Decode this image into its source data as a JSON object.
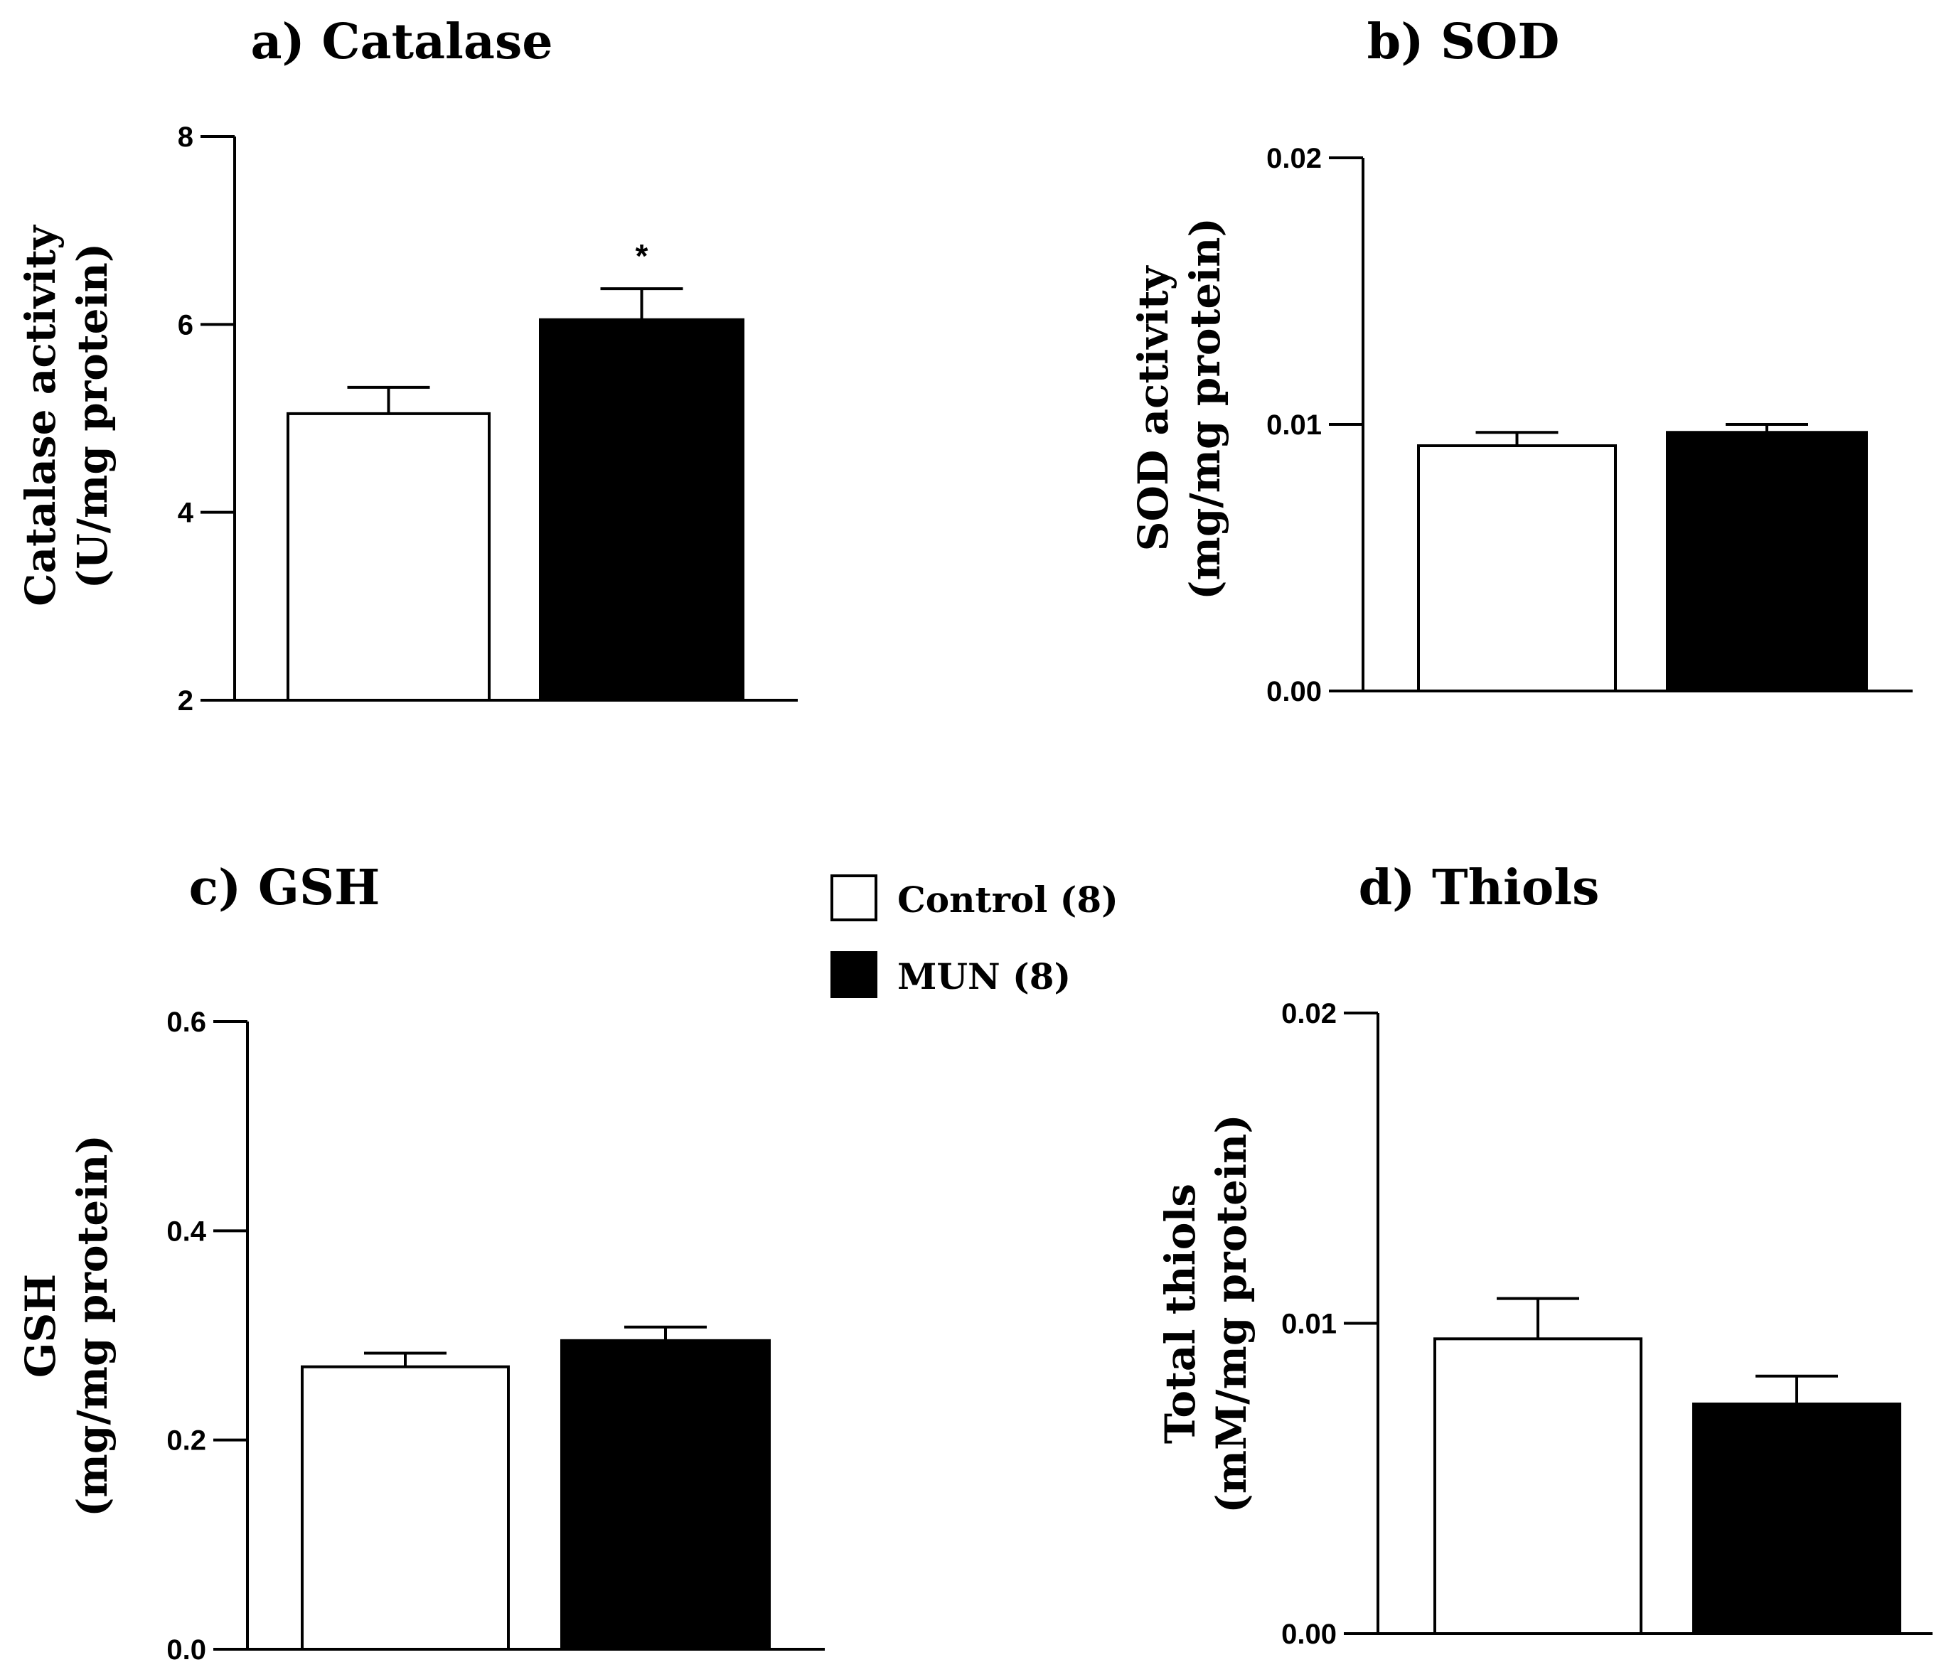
{
  "chart_data": [
    {
      "type": "bar",
      "title": "a) Catalase",
      "ylabel_lines": [
        "Catalase activity",
        "(U/mg protein)"
      ],
      "categories": [
        "Control (8)",
        "MUN (8)"
      ],
      "values": [
        5.05,
        6.05
      ],
      "errors": [
        0.28,
        0.33
      ],
      "ylim": [
        2,
        8
      ],
      "yticks": [
        2,
        4,
        6,
        8
      ],
      "ytick_labels": [
        "2",
        "4",
        "6",
        "8"
      ],
      "significance": [
        "",
        "*"
      ]
    },
    {
      "type": "bar",
      "title": "b) SOD",
      "ylabel_lines": [
        "SOD activity",
        "(mg/mg protein)"
      ],
      "categories": [
        "Control (8)",
        "MUN (8)"
      ],
      "values": [
        0.0092,
        0.0097
      ],
      "errors": [
        0.0005,
        0.0003
      ],
      "ylim": [
        0,
        0.02
      ],
      "yticks": [
        0,
        0.01,
        0.02
      ],
      "ytick_labels": [
        "0.00",
        "0.01",
        "0.02"
      ],
      "significance": [
        "",
        ""
      ]
    },
    {
      "type": "bar",
      "title": "c) GSH",
      "ylabel_lines": [
        "GSH",
        "(mg/mg protein)"
      ],
      "categories": [
        "Control (8)",
        "MUN (8)"
      ],
      "values": [
        0.27,
        0.295
      ],
      "errors": [
        0.013,
        0.013
      ],
      "ylim": [
        0,
        0.6
      ],
      "yticks": [
        0,
        0.2,
        0.4,
        0.6
      ],
      "ytick_labels": [
        "0.0",
        "0.2",
        "0.4",
        "0.6"
      ],
      "significance": [
        "",
        ""
      ]
    },
    {
      "type": "bar",
      "title": "d) Thiols",
      "ylabel_lines": [
        "Total thiols",
        "(mM/mg protein)"
      ],
      "categories": [
        "Control (8)",
        "MUN (8)"
      ],
      "values": [
        0.0095,
        0.0074
      ],
      "errors": [
        0.0013,
        0.0009
      ],
      "ylim": [
        0,
        0.02
      ],
      "yticks": [
        0,
        0.01,
        0.02
      ],
      "ytick_labels": [
        "0.00",
        "0.01",
        "0.02"
      ],
      "significance": [
        "",
        ""
      ]
    }
  ],
  "legend": [
    {
      "label": "Control (8)",
      "color": "#ffffff"
    },
    {
      "label": "MUN (8)",
      "color": "#000000"
    }
  ],
  "colors": {
    "control": "#ffffff",
    "mun": "#000000",
    "stroke": "#000000"
  }
}
